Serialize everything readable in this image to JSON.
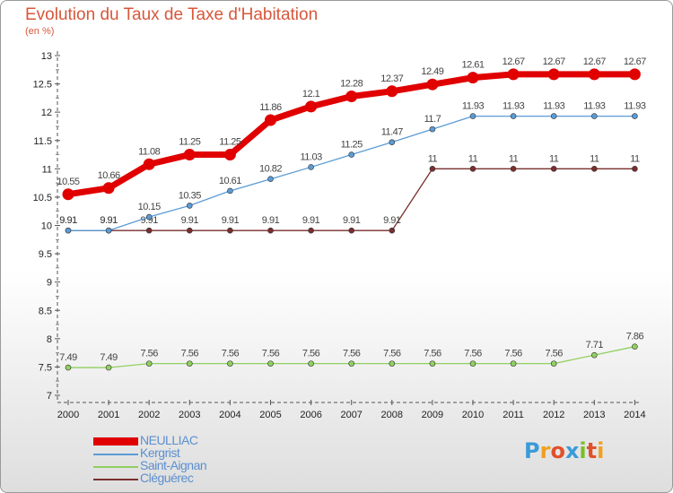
{
  "title": "Evolution du Taux de Taxe d'Habitation",
  "unit_label": "(en %)",
  "logo": {
    "letters": [
      "P",
      "r",
      "o",
      "x",
      "i",
      "t",
      "i"
    ],
    "colors": [
      "#3a9bd8",
      "#f0a020",
      "#e0502a",
      "#3a9bd8",
      "#7cbf2a",
      "#e0502a",
      "#f0a020"
    ]
  },
  "chart_data": {
    "type": "line",
    "x": [
      "2000",
      "2001",
      "2002",
      "2003",
      "2004",
      "2005",
      "2006",
      "2007",
      "2008",
      "2009",
      "2010",
      "2011",
      "2012",
      "2013",
      "2014"
    ],
    "ylim": [
      7,
      13
    ],
    "yticks": [
      "7",
      "7.5",
      "8",
      "8.5",
      "9",
      "9.5",
      "10",
      "10.5",
      "11",
      "11.5",
      "12",
      "12.5",
      "13"
    ],
    "grid": false,
    "legend_position": "bottom-left",
    "series": [
      {
        "name": "NEULLIAC",
        "color": "#e00000",
        "bold": true,
        "values": [
          10.55,
          10.66,
          11.08,
          11.25,
          11.25,
          11.86,
          12.1,
          12.28,
          12.37,
          12.49,
          12.61,
          12.67,
          12.67,
          12.67,
          12.67
        ],
        "labels": [
          "10.55",
          "10.66",
          "11.08",
          "11.25",
          "11.25",
          "11.86",
          "12.1",
          "12.28",
          "12.37",
          "12.49",
          "12.61",
          "12.67",
          "12.67",
          "12.67",
          "12.67"
        ]
      },
      {
        "name": "Kergrist",
        "color": "#5b9bd5",
        "bold": false,
        "values": [
          9.91,
          9.91,
          10.15,
          10.35,
          10.61,
          10.82,
          11.03,
          11.25,
          11.47,
          11.7,
          11.93,
          11.93,
          11.93,
          11.93,
          11.93
        ],
        "labels": [
          "9.91",
          "9.91",
          "10.15",
          "10.35",
          "10.61",
          "10.82",
          "11.03",
          "11.25",
          "11.47",
          "11.7",
          "11.93",
          "11.93",
          "11.93",
          "11.93",
          "11.93"
        ]
      },
      {
        "name": "Saint-Aignan",
        "color": "#90d060",
        "bold": false,
        "values": [
          7.49,
          7.49,
          7.56,
          7.56,
          7.56,
          7.56,
          7.56,
          7.56,
          7.56,
          7.56,
          7.56,
          7.56,
          7.56,
          7.71,
          7.86
        ],
        "labels": [
          "7.49",
          "7.49",
          "7.56",
          "7.56",
          "7.56",
          "7.56",
          "7.56",
          "7.56",
          "7.56",
          "7.56",
          "7.56",
          "7.56",
          "7.56",
          "7.71",
          "7.86"
        ]
      },
      {
        "name": "Cléguérec",
        "color": "#7a2e2e",
        "bold": false,
        "values": [
          9.91,
          9.91,
          9.91,
          9.91,
          9.91,
          9.91,
          9.91,
          9.91,
          9.91,
          11,
          11,
          11,
          11,
          11,
          11
        ],
        "labels": [
          "9.91",
          "9.91",
          "9.91",
          "9.91",
          "9.91",
          "9.91",
          "9.91",
          "9.91",
          "9.91",
          "11",
          "11",
          "11",
          "11",
          "11",
          "11"
        ]
      }
    ]
  }
}
